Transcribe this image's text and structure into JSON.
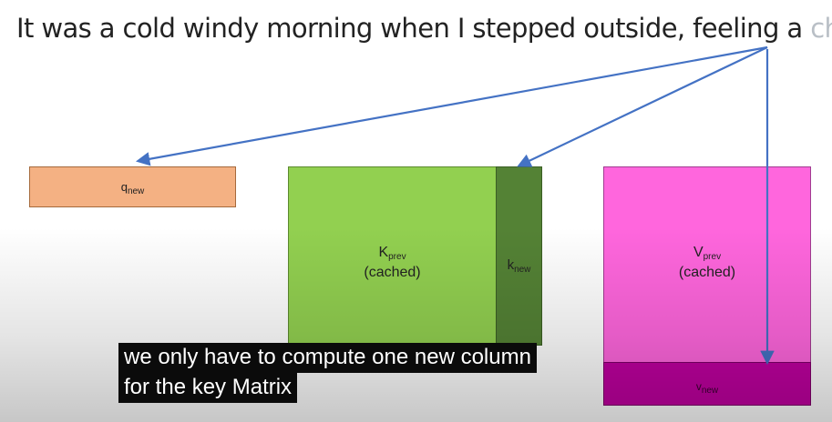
{
  "sentence": {
    "main": "It was a cold windy morning when I stepped outside, feeling a",
    "highlighted": "chill"
  },
  "diagram": {
    "q_new": {
      "base": "q",
      "sub": "new"
    },
    "k_prev": {
      "base": "K",
      "sub": "prev",
      "note": "(cached)"
    },
    "k_new": {
      "base": "k",
      "sub": "new"
    },
    "v_prev": {
      "base": "V",
      "sub": "prev",
      "note": "(cached)"
    },
    "v_new": {
      "base": "v",
      "sub": "new"
    }
  },
  "caption": {
    "line1": "we only have to compute one new column",
    "line2": "for the key Matrix"
  },
  "colors": {
    "q_box": "#f4b183",
    "k_prev_box": "#92d050",
    "k_new_box": "#548235",
    "v_prev_box": "#ff66dd",
    "v_new_box": "#c000a0",
    "arrow": "#4472c4"
  }
}
